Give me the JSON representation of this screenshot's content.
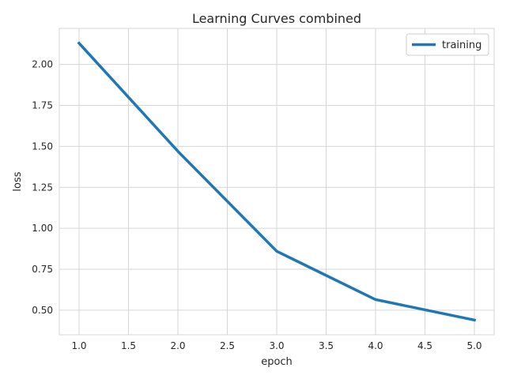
{
  "chart_data": {
    "type": "line",
    "title": "Learning Curves combined",
    "xlabel": "epoch",
    "ylabel": "loss",
    "xlim": [
      0.8,
      5.2
    ],
    "ylim": [
      0.35,
      2.22
    ],
    "xticks": [
      1.0,
      1.5,
      2.0,
      2.5,
      3.0,
      3.5,
      4.0,
      4.5,
      5.0
    ],
    "xtick_labels": [
      "1.0",
      "1.5",
      "2.0",
      "2.5",
      "3.0",
      "3.5",
      "4.0",
      "4.5",
      "5.0"
    ],
    "yticks": [
      0.5,
      0.75,
      1.0,
      1.25,
      1.5,
      1.75,
      2.0
    ],
    "ytick_labels": [
      "0.50",
      "0.75",
      "1.00",
      "1.25",
      "1.50",
      "1.75",
      "2.00"
    ],
    "grid": true,
    "legend_position": "top-right",
    "series": [
      {
        "name": "training",
        "color": "#1f77b4",
        "x": [
          1,
          2,
          3,
          4,
          5
        ],
        "values": [
          2.13,
          1.47,
          0.86,
          0.565,
          0.44
        ]
      }
    ]
  }
}
